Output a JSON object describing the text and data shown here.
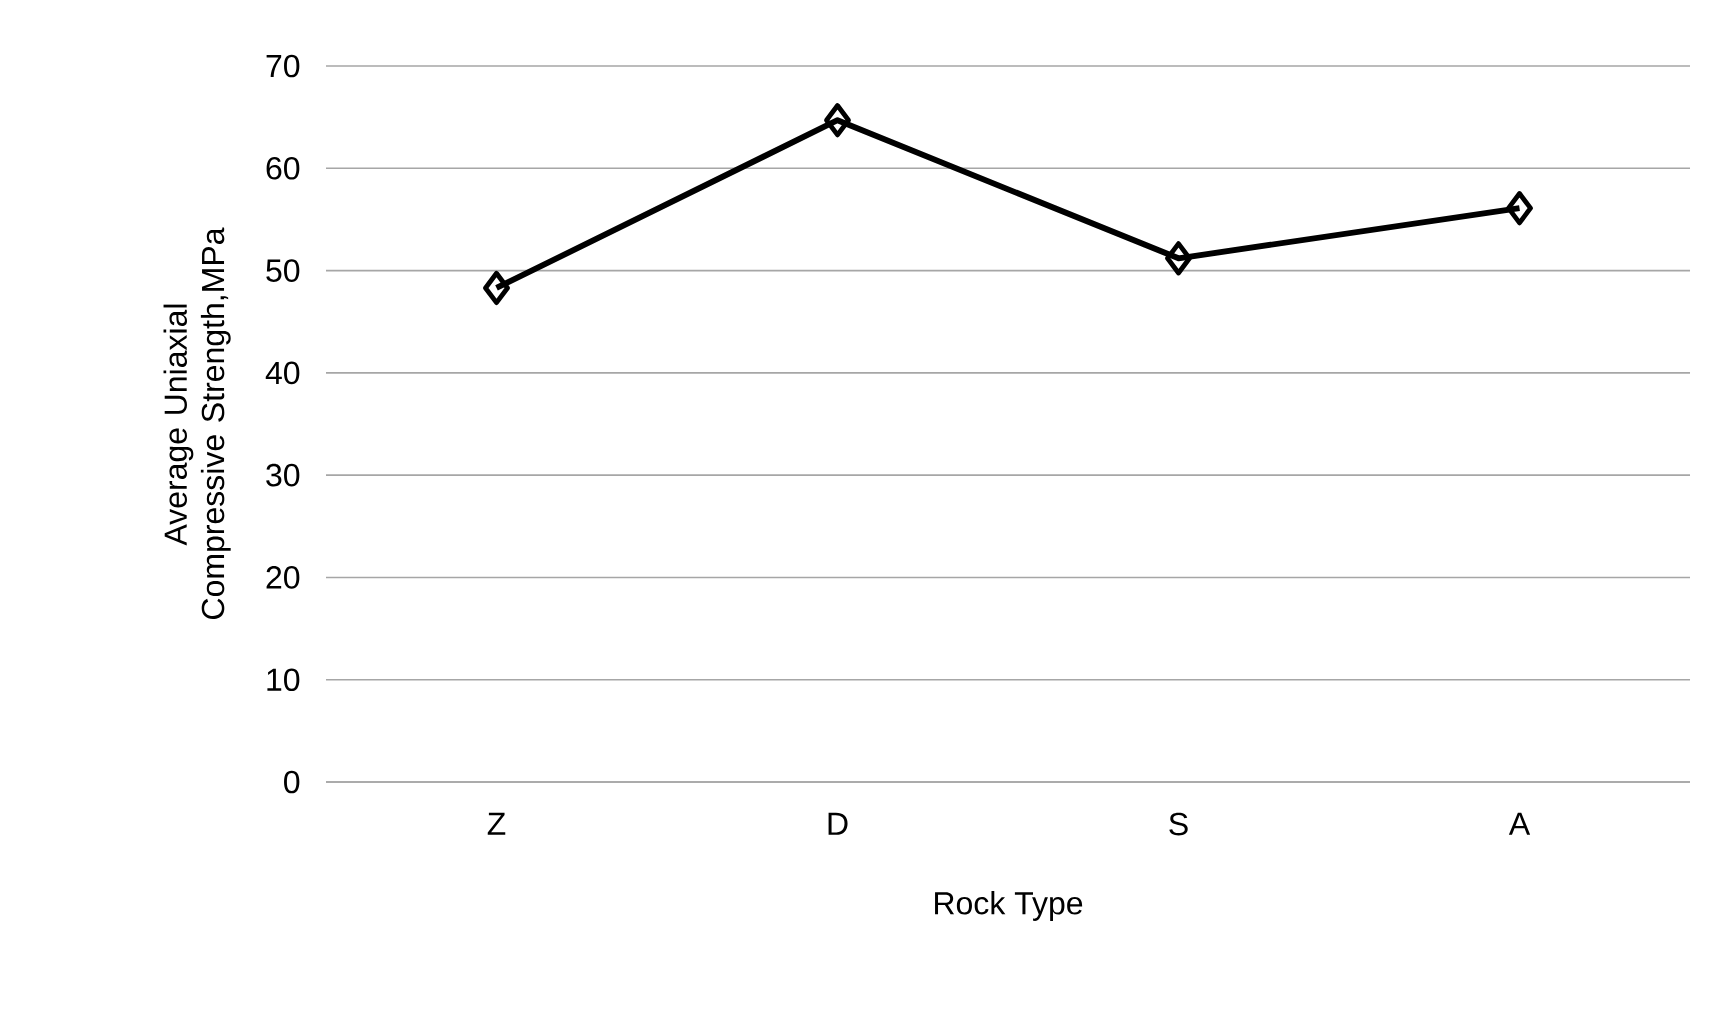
{
  "chart_data": {
    "type": "line",
    "xlabel": "Rock Type",
    "ylabel": "Average Uniaxial Compressive Strength,MPa",
    "categories": [
      "Z",
      "D",
      "S",
      "A"
    ],
    "values": [
      48.3,
      64.7,
      51.2,
      56.1
    ],
    "color": "#000000",
    "marker": "diamond",
    "line_style": "solid",
    "ylim": [
      0,
      70
    ],
    "yticks": [
      0,
      10,
      20,
      30,
      40,
      50,
      60,
      70
    ],
    "grid": "y"
  }
}
